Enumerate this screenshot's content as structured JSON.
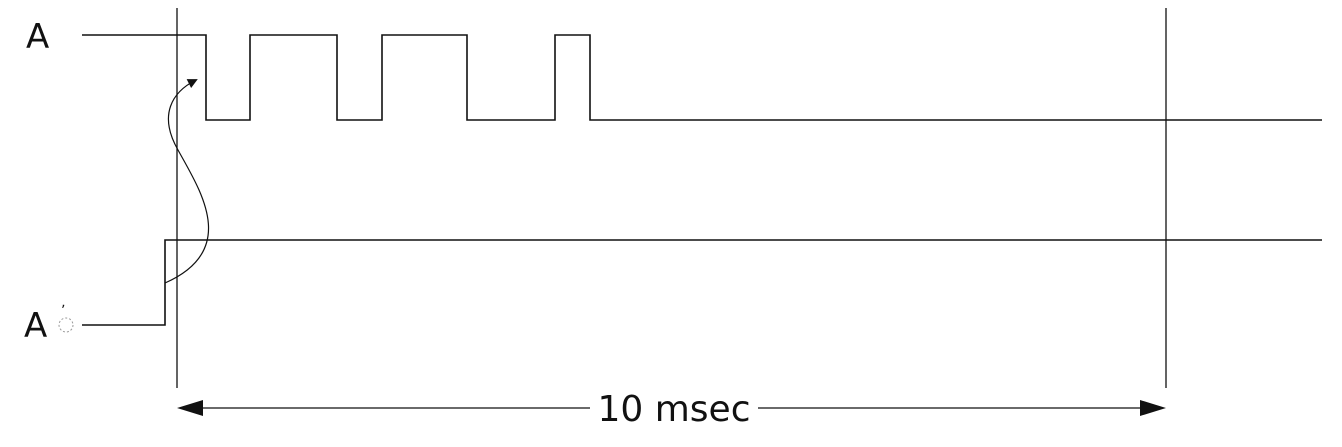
{
  "diagram": {
    "signal_a_label": "A",
    "signal_a_prime_label": "A",
    "signal_a_prime_mark": "ʼ",
    "duration_label": "10 msec"
  },
  "colors": {
    "line": "#111111",
    "background": "#ffffff"
  }
}
